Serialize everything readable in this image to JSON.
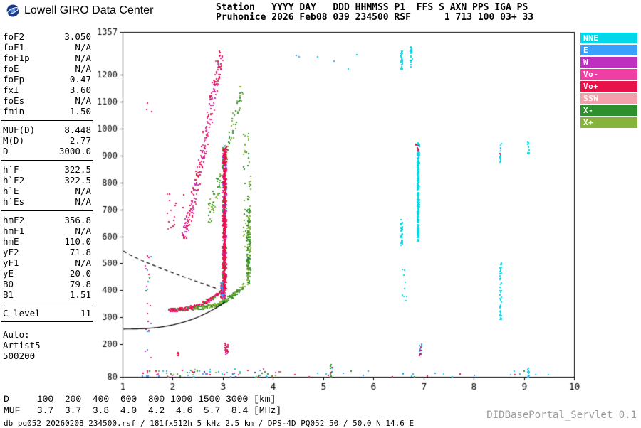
{
  "header": {
    "brand": "Lowell GIRO Data Center",
    "line1": "Station   YYYY DAY   DDD HHMMSS P1  FFS S AXN PPS IGA PS",
    "line2": "Pruhonice 2026 Feb08 039 234500 RSF      1 713 100 03+ 33"
  },
  "param_panel": {
    "groups": [
      {
        "rows": [
          {
            "label": "foF2",
            "value": "3.050"
          },
          {
            "label": "foF1",
            "value": "N/A"
          },
          {
            "label": "foF1p",
            "value": "N/A"
          },
          {
            "label": "foE",
            "value": "N/A"
          },
          {
            "label": "foEp",
            "value": "0.47"
          },
          {
            "label": "fxI",
            "value": "3.60"
          },
          {
            "label": "foEs",
            "value": "N/A"
          },
          {
            "label": "fmin",
            "value": "1.50"
          }
        ]
      },
      {
        "divider": true,
        "rows": [
          {
            "label": "MUF(D)",
            "value": "8.448"
          },
          {
            "label": "M(D)",
            "value": "2.77"
          },
          {
            "label": "D",
            "value": "3000.0"
          }
        ]
      },
      {
        "divider": true,
        "rows": [
          {
            "label": "h`F",
            "value": "322.5"
          },
          {
            "label": "h`F2",
            "value": "322.5"
          },
          {
            "label": "h`E",
            "value": "N/A"
          },
          {
            "label": "h`Es",
            "value": "N/A"
          }
        ]
      },
      {
        "divider": true,
        "rows": [
          {
            "label": "hmF2",
            "value": "356.8"
          },
          {
            "label": "hmF1",
            "value": "N/A"
          },
          {
            "label": "hmE",
            "value": "110.0"
          },
          {
            "label": "yF2",
            "value": "71.8"
          },
          {
            "label": "yF1",
            "value": "N/A"
          },
          {
            "label": "yE",
            "value": "20.0"
          },
          {
            "label": "B0",
            "value": "79.8"
          },
          {
            "label": "B1",
            "value": "1.51"
          }
        ]
      },
      {
        "divider": true,
        "divider_bottom": true,
        "rows": [
          {
            "label": "C-level",
            "value": "11"
          }
        ]
      },
      {
        "rows": [
          {
            "label": "Auto:",
            "value": ""
          },
          {
            "label": "Artist5",
            "value": ""
          },
          {
            "label": "500200",
            "value": ""
          }
        ]
      }
    ]
  },
  "legend": {
    "items": [
      {
        "label": "NNE",
        "color": "#00d8ea"
      },
      {
        "label": "E",
        "color": "#3aa0ff"
      },
      {
        "label": "W",
        "color": "#bf2fbf"
      },
      {
        "label": "Vo-",
        "color": "#ef3fa5"
      },
      {
        "label": "Vo+",
        "color": "#e8114a"
      },
      {
        "label": "SSW",
        "color": "#f2a0ac"
      },
      {
        "label": "X-",
        "color": "#2f8f2f"
      },
      {
        "label": "X+",
        "color": "#86b33a"
      }
    ]
  },
  "distance_muf_table": {
    "rows": [
      {
        "label": "D",
        "values": [
          "100",
          "200",
          "400",
          "600",
          "800",
          "1000",
          "1500",
          "3000"
        ],
        "unit": "[km]"
      },
      {
        "label": "MUF",
        "values": [
          "3.7",
          "3.7",
          "3.8",
          "4.0",
          "4.2",
          "4.6",
          "5.7",
          "8.4"
        ],
        "unit": "[MHz]"
      }
    ]
  },
  "footer": {
    "status": "db pq052 20260208 234500.rsf / 181fx512h 5 kHz 2.5 km / DPS-4D PQ052 50 / 50.0 N 14.6 E",
    "servlet": "DIDBasePortal_Servlet 0.1"
  },
  "chart_data": {
    "type": "scatter",
    "xlabel": "[MHz]",
    "ylabel": "[km]",
    "x_min": 1,
    "x_max": 10,
    "y_min": 80,
    "y_max": 1357,
    "x_ticks": [
      1,
      2,
      3,
      4,
      5,
      6,
      7,
      8,
      9,
      10
    ],
    "y_tick_labels": [
      1357,
      1200,
      1100,
      1000,
      900,
      800,
      700,
      600,
      500,
      400,
      300,
      200,
      80
    ],
    "key_values": {
      "foF2_MHz": 3.05,
      "fxI_MHz": 3.6,
      "hmF2_km": 356.8,
      "h_F_km": 322.5
    },
    "seed": 1337,
    "palette": {
      "red": "#e8114a",
      "pink": "#ef3fa5",
      "magenta": "#bf2fbf",
      "blue": "#3aa0ff",
      "navy": "#2b3f9e",
      "cyan": "#00d8ea",
      "dkgreen": "#2f8f2f",
      "ltgreen": "#86b33a",
      "salmon": "#f2a0ac"
    },
    "traces": [
      {
        "type": "box",
        "f0": 1.35,
        "f1": 4.2,
        "h0": 80,
        "h1": 112,
        "n": 80,
        "colors": [
          "red",
          "blue",
          "dkgreen",
          "cyan",
          "pink",
          "ltgreen",
          "navy"
        ],
        "s": 2
      },
      {
        "type": "box",
        "f0": 4.2,
        "f1": 9.6,
        "h0": 80,
        "h1": 105,
        "n": 28,
        "colors": [
          "red",
          "blue",
          "dkgreen",
          "cyan"
        ],
        "s": 2
      },
      {
        "type": "vline",
        "f": 1.5,
        "h0": 95,
        "h1": 555,
        "n": 26,
        "jx": 0.06,
        "colors": [
          "red",
          "blue",
          "pink",
          "dkgreen"
        ],
        "s": 2
      },
      {
        "type": "box",
        "f0": 1.42,
        "f1": 1.58,
        "h0": 1060,
        "h1": 1110,
        "n": 3,
        "colors": [
          "red"
        ],
        "s": 2
      },
      {
        "type": "curve",
        "f0": 2.22,
        "f1": 2.95,
        "h0": 615,
        "h1": 1275,
        "pow": 1.15,
        "n": 240,
        "jx": 0.055,
        "jy": 26,
        "colors": [
          "red",
          "red",
          "pink",
          "magenta"
        ],
        "s": 2
      },
      {
        "type": "box",
        "f0": 1.85,
        "f1": 2.25,
        "h0": 630,
        "h1": 770,
        "n": 16,
        "colors": [
          "red",
          "pink"
        ],
        "s": 2
      },
      {
        "type": "curve",
        "f0": 2.72,
        "f1": 3.38,
        "h0": 680,
        "h1": 1160,
        "pow": 1.1,
        "n": 110,
        "jx": 0.06,
        "jy": 28,
        "colors": [
          "dkgreen",
          "ltgreen"
        ],
        "s": 2
      },
      {
        "type": "curve",
        "f0": 1.93,
        "f1": 2.97,
        "h0": 330,
        "h1": 402,
        "pow": 2.3,
        "n": 240,
        "jx": 0.03,
        "jy": 6,
        "colors": [
          "red",
          "red",
          "red",
          "pink",
          "dkgreen"
        ],
        "s": 2
      },
      {
        "type": "vline",
        "f": 2.99,
        "h0": 372,
        "h1": 432,
        "n": 130,
        "jx": 0.045,
        "colors": [
          "red",
          "red",
          "pink",
          "magenta",
          "blue"
        ],
        "s": 2
      },
      {
        "type": "vline",
        "f": 3.02,
        "h0": 400,
        "h1": 938,
        "n": 520,
        "jx": 0.042,
        "colors": [
          "red",
          "red",
          "red",
          "red",
          "pink",
          "magenta",
          "dkgreen",
          "blue"
        ],
        "s": 2
      },
      {
        "type": "vline",
        "f": 3.02,
        "h0": 410,
        "h1": 930,
        "n": 260,
        "jx": 0.015,
        "colors": [
          "red"
        ],
        "s": 2
      },
      {
        "type": "curve",
        "f0": 2.42,
        "f1": 3.44,
        "h0": 338,
        "h1": 428,
        "pow": 2.3,
        "n": 200,
        "jx": 0.035,
        "jy": 7,
        "colors": [
          "dkgreen",
          "ltgreen",
          "ltgreen",
          "dkgreen"
        ],
        "s": 2
      },
      {
        "type": "vline",
        "f": 3.5,
        "h0": 420,
        "h1": 705,
        "n": 170,
        "jx": 0.035,
        "colors": [
          "ltgreen",
          "dkgreen"
        ],
        "s": 2
      },
      {
        "type": "vline",
        "f": 3.47,
        "h0": 560,
        "h1": 1005,
        "n": 55,
        "jx": 0.07,
        "colors": [
          "dkgreen",
          "ltgreen"
        ],
        "s": 2
      },
      {
        "type": "vline",
        "f": 3.06,
        "h0": 162,
        "h1": 208,
        "n": 24,
        "jx": 0.03,
        "colors": [
          "red",
          "red",
          "magenta"
        ],
        "s": 2
      },
      {
        "type": "vline",
        "f": 2.1,
        "h0": 160,
        "h1": 186,
        "n": 8,
        "jx": 0.02,
        "colors": [
          "red"
        ],
        "s": 2
      },
      {
        "type": "vline",
        "f": 6.88,
        "h0": 585,
        "h1": 952,
        "n": 300,
        "jx": 0.02,
        "colors": [
          "cyan"
        ],
        "s": 2
      },
      {
        "type": "box",
        "f0": 6.84,
        "f1": 6.92,
        "h0": 918,
        "h1": 945,
        "n": 8,
        "colors": [
          "red"
        ],
        "s": 2
      },
      {
        "type": "vline",
        "f": 6.55,
        "h0": 565,
        "h1": 665,
        "n": 42,
        "jx": 0.018,
        "colors": [
          "cyan"
        ],
        "s": 2
      },
      {
        "type": "vline",
        "f": 6.55,
        "h0": 1222,
        "h1": 1292,
        "n": 26,
        "jx": 0.018,
        "colors": [
          "cyan"
        ],
        "s": 2
      },
      {
        "type": "vline",
        "f": 6.74,
        "h0": 1230,
        "h1": 1305,
        "n": 22,
        "jx": 0.018,
        "colors": [
          "cyan"
        ],
        "s": 2
      },
      {
        "type": "vline",
        "f": 6.6,
        "h0": 340,
        "h1": 480,
        "n": 9,
        "jx": 0.05,
        "colors": [
          "cyan"
        ],
        "s": 2
      },
      {
        "type": "vline",
        "f": 6.93,
        "h0": 162,
        "h1": 205,
        "n": 20,
        "jx": 0.025,
        "colors": [
          "blue",
          "navy",
          "red"
        ],
        "s": 2
      },
      {
        "type": "vline",
        "f": 8.52,
        "h0": 285,
        "h1": 530,
        "n": 52,
        "jx": 0.02,
        "colors": [
          "cyan"
        ],
        "s": 2
      },
      {
        "type": "vline",
        "f": 8.52,
        "h0": 875,
        "h1": 950,
        "n": 16,
        "jx": 0.02,
        "colors": [
          "cyan",
          "cyan",
          "red"
        ],
        "s": 2
      },
      {
        "type": "vline",
        "f": 9.08,
        "h0": 905,
        "h1": 952,
        "n": 10,
        "jx": 0.015,
        "colors": [
          "cyan"
        ],
        "s": 2
      },
      {
        "type": "vline",
        "f": 9.08,
        "h0": 80,
        "h1": 118,
        "n": 12,
        "jx": 0.02,
        "colors": [
          "cyan",
          "blue"
        ],
        "s": 2
      },
      {
        "type": "vline",
        "f": 5.15,
        "h0": 80,
        "h1": 128,
        "n": 15,
        "jx": 0.03,
        "colors": [
          "blue",
          "red",
          "dkgreen",
          "cyan"
        ],
        "s": 2
      },
      {
        "type": "box",
        "f0": 4.3,
        "f1": 6.2,
        "h0": 1180,
        "h1": 1300,
        "n": 6,
        "colors": [
          "cyan",
          "blue"
        ],
        "s": 2
      }
    ],
    "profile_solid": {
      "f0": 1.02,
      "f1": 3.04,
      "h0": 257,
      "h1": 356,
      "pow": 2.6
    },
    "profile_dashed": {
      "f0": 1.02,
      "f1": 2.93,
      "h0": 546,
      "h1": 404,
      "pow": 0.85
    }
  }
}
